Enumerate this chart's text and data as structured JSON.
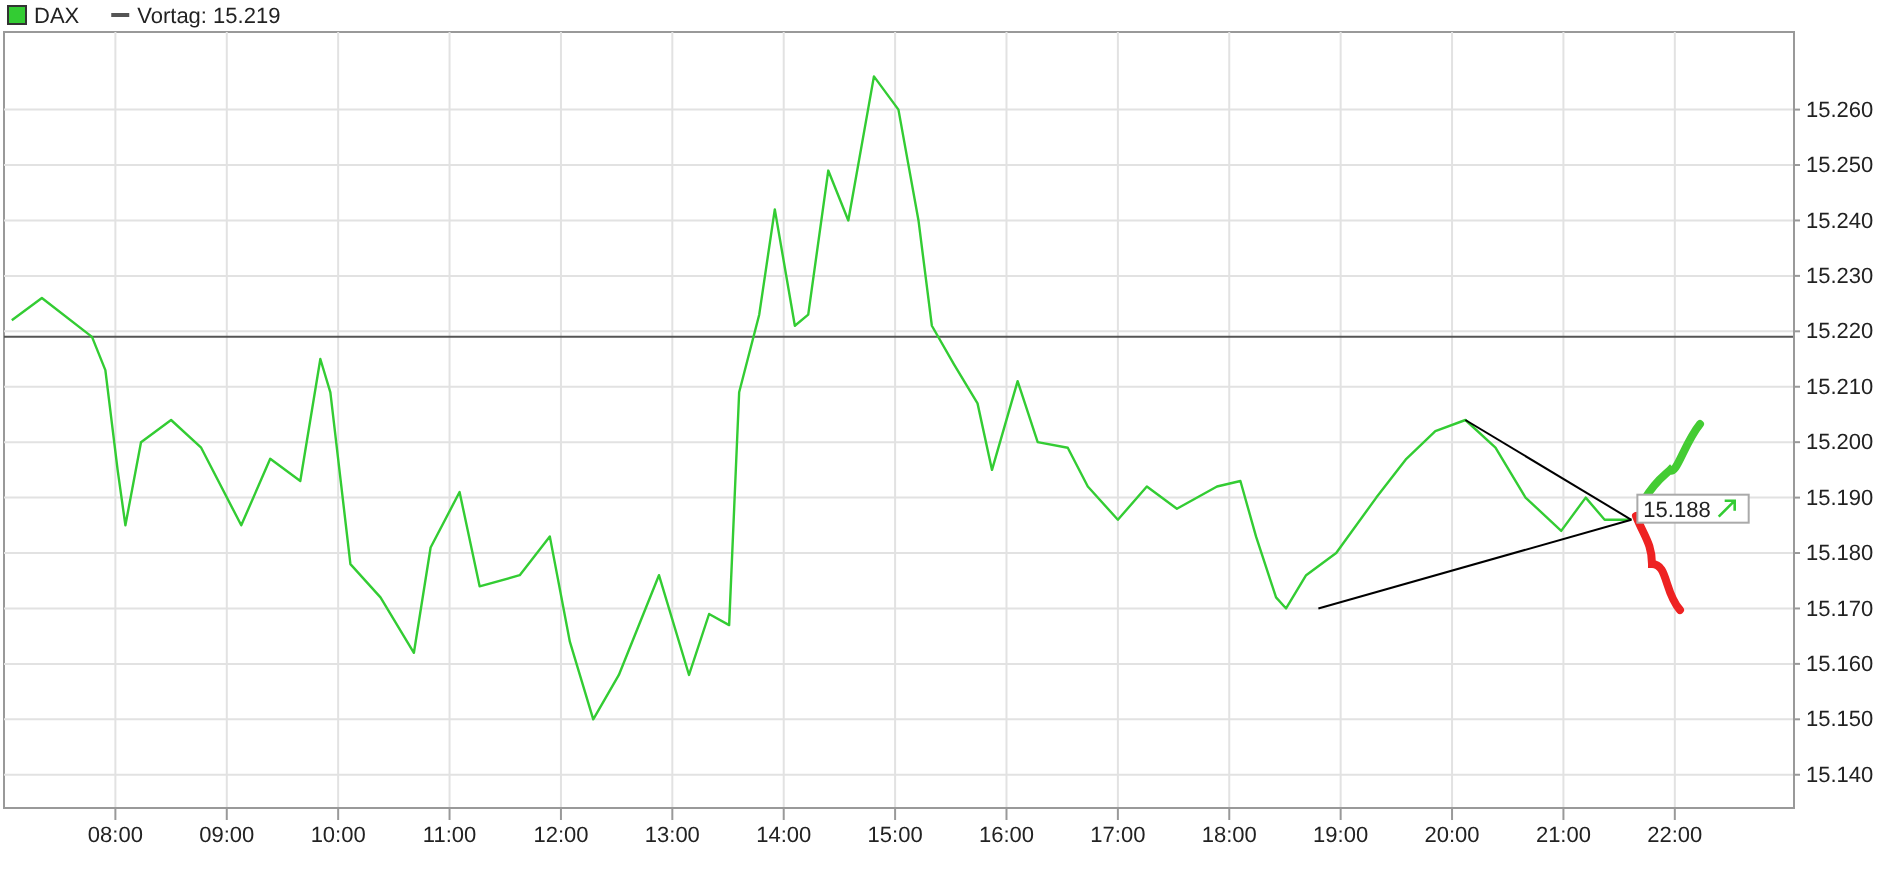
{
  "chart_data": {
    "type": "line",
    "xlim": [
      7.0,
      23.07
    ],
    "ylim": [
      15134,
      15274
    ],
    "xticks": [
      {
        "value": 8,
        "label": "08:00"
      },
      {
        "value": 9,
        "label": "09:00"
      },
      {
        "value": 10,
        "label": "10:00"
      },
      {
        "value": 11,
        "label": "11:00"
      },
      {
        "value": 12,
        "label": "12:00"
      },
      {
        "value": 13,
        "label": "13:00"
      },
      {
        "value": 14,
        "label": "14:00"
      },
      {
        "value": 15,
        "label": "15:00"
      },
      {
        "value": 16,
        "label": "16:00"
      },
      {
        "value": 17,
        "label": "17:00"
      },
      {
        "value": 18,
        "label": "18:00"
      },
      {
        "value": 19,
        "label": "19:00"
      },
      {
        "value": 20,
        "label": "20:00"
      },
      {
        "value": 21,
        "label": "21:00"
      },
      {
        "value": 22,
        "label": "22:00"
      }
    ],
    "yticks": [
      {
        "value": 15140,
        "label": "15.140"
      },
      {
        "value": 15150,
        "label": "15.150"
      },
      {
        "value": 15160,
        "label": "15.160"
      },
      {
        "value": 15170,
        "label": "15.170"
      },
      {
        "value": 15180,
        "label": "15.180"
      },
      {
        "value": 15190,
        "label": "15.190"
      },
      {
        "value": 15200,
        "label": "15.200"
      },
      {
        "value": 15210,
        "label": "15.210"
      },
      {
        "value": 15220,
        "label": "15.220"
      },
      {
        "value": 15230,
        "label": "15.230"
      },
      {
        "value": 15240,
        "label": "15.240"
      },
      {
        "value": 15250,
        "label": "15.250"
      },
      {
        "value": 15260,
        "label": "15.260"
      }
    ],
    "grid": true,
    "legend": "top left",
    "marker": "none",
    "line_style": "solid",
    "series": [
      {
        "name": "DAX",
        "color": "#33cc33",
        "x": [
          7.07,
          7.34,
          7.79,
          7.91,
          8.02,
          8.09,
          8.23,
          8.5,
          8.77,
          9.13,
          9.39,
          9.66,
          9.84,
          9.93,
          10.11,
          10.38,
          10.68,
          10.83,
          11.09,
          11.27,
          11.63,
          11.9,
          12.08,
          12.29,
          12.52,
          12.88,
          13.15,
          13.33,
          13.51,
          13.6,
          13.78,
          13.92,
          14.1,
          14.22,
          14.4,
          14.58,
          14.81,
          15.03,
          15.21,
          15.33,
          15.53,
          15.74,
          15.87,
          16.1,
          16.28,
          16.55,
          16.73,
          17.0,
          17.26,
          17.53,
          17.89,
          18.1,
          18.24,
          18.42,
          18.51,
          18.69,
          18.96,
          19.32,
          19.59,
          19.85,
          20.12,
          20.39,
          20.66,
          20.98,
          21.2,
          21.37,
          21.61
        ],
        "values": [
          15222,
          15226,
          15219,
          15213,
          15195,
          15185,
          15200,
          15204,
          15199,
          15185,
          15197,
          15193,
          15215,
          15209,
          15178,
          15172,
          15162,
          15181,
          15191,
          15174,
          15176,
          15183,
          15164,
          15150,
          15158,
          15176,
          15158,
          15169,
          15167,
          15209,
          15223,
          15242,
          15221,
          15223,
          15249,
          15240,
          15266,
          15260,
          15240,
          15221,
          15214,
          15207,
          15195,
          15211,
          15200,
          15199,
          15192,
          15186,
          15192,
          15188,
          15192,
          15193,
          15183,
          15172,
          15170,
          15176,
          15180,
          15190,
          15197,
          15202,
          15204,
          15199,
          15190,
          15184,
          15190,
          15186,
          15186
        ]
      },
      {
        "type": "line",
        "color": "#000000",
        "x": [
          18.8,
          21.61
        ],
        "values": [
          15170,
          15186
        ]
      },
      {
        "type": "line",
        "color": "#000000",
        "x": [
          20.12,
          21.61
        ],
        "values": [
          15204,
          15186
        ]
      }
    ],
    "ref_lines": [
      {
        "axis": "y",
        "value": 15219,
        "label": "Vortag: 15.219",
        "color": "#555555"
      }
    ],
    "annotations": [
      {
        "text": "15.188",
        "x": 21.61,
        "y": 15188
      }
    ]
  }
}
